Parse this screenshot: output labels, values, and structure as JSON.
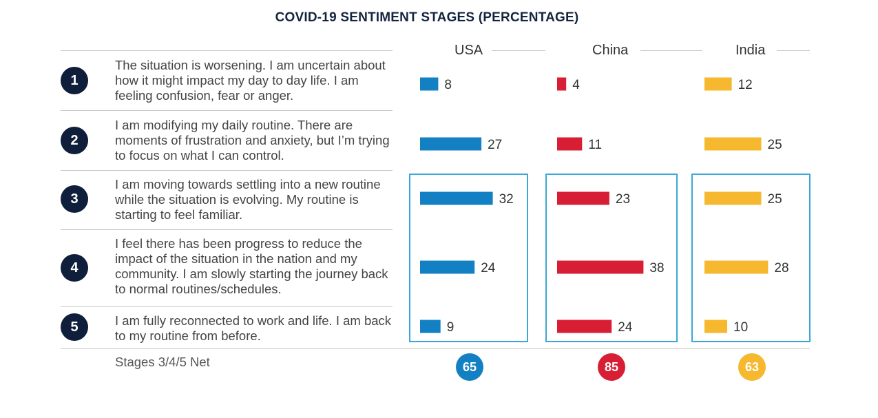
{
  "title": "COVID-19 SENTIMENT STAGES (PERCENTAGE)",
  "stages": [
    {
      "number": "1",
      "text": "The situation is worsening. I am uncertain about how it might impact my day to day life. I am feeling confusion, fear or anger."
    },
    {
      "number": "2",
      "text": "I am modifying my daily routine. There are moments of frustration and anxiety, but I’m trying to focus on what I can control."
    },
    {
      "number": "3",
      "text": "I am moving towards settling into a new routine while the situation is evolving. My routine is starting to feel familiar."
    },
    {
      "number": "4",
      "text": "I feel there has been progress to reduce the impact of the situation in the nation and my community. I am slowly starting the journey back to normal routines/schedules."
    },
    {
      "number": "5",
      "text": "I am fully reconnected to work and life. I am back to my routine from before."
    }
  ],
  "net_label": "Stages 3/4/5 Net",
  "chart_data": {
    "type": "bar",
    "orientation": "horizontal",
    "title": "COVID-19 SENTIMENT STAGES (PERCENTAGE)",
    "categories": [
      "1",
      "2",
      "3",
      "4",
      "5"
    ],
    "series": [
      {
        "name": "USA",
        "color": "#1380c3",
        "values": [
          8,
          27,
          32,
          24,
          9
        ],
        "net": "65"
      },
      {
        "name": "China",
        "color": "#d81e34",
        "values": [
          4,
          11,
          23,
          38,
          24
        ],
        "net": "85"
      },
      {
        "name": "India",
        "color": "#f5b82e",
        "values": [
          12,
          25,
          25,
          28,
          10
        ],
        "net": "63"
      }
    ],
    "highlighted_stages": [
      "3",
      "4",
      "5"
    ]
  }
}
